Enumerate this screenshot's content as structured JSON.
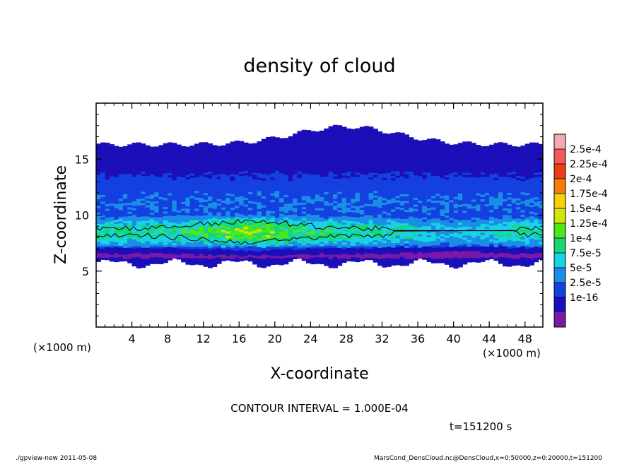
{
  "chart_data": {
    "type": "heatmap",
    "title": "density of cloud",
    "xlabel": "X-coordinate",
    "ylabel": "Z-coordinate",
    "x_unit_left": "(×1000 m)",
    "x_unit_right": "(×1000 m)",
    "xlim": [
      0,
      50
    ],
    "ylim": [
      0,
      20
    ],
    "x_ticks": [
      4,
      8,
      12,
      16,
      20,
      24,
      28,
      32,
      36,
      40,
      44,
      48
    ],
    "y_ticks": [
      5,
      10,
      15
    ],
    "grid": false,
    "contour_interval_label": "CONTOUR INTERVAL = 1.000E-04",
    "contour_interval": 0.0001,
    "time_label": "t=151200 s",
    "colorbar": {
      "labels": [
        "2.5e-4",
        "2.25e-4",
        "2e-4",
        "1.75e-4",
        "1.5e-4",
        "1.25e-4",
        "1e-4",
        "7.5e-5",
        "5e-5",
        "2.5e-5",
        "1e-16"
      ],
      "colors": [
        "#f7a8b6",
        "#f25a5a",
        "#f03c14",
        "#f57d0c",
        "#f5d20c",
        "#d2e60a",
        "#4ee81a",
        "#17d67a",
        "#1ad2e6",
        "#1a8ee6",
        "#1440e0",
        "#1a0fb8",
        "#7a18a8"
      ]
    },
    "cloud_layer": {
      "bottom_km_range": [
        5.2,
        6.2
      ],
      "top_km_range": [
        16.0,
        17.9
      ],
      "core_km": [
        7.5,
        9.5
      ],
      "max_density_approx": 0.00013
    }
  },
  "footer": {
    "left": "./gpview-new   2011-05-08",
    "right": "MarsCond_DensCloud.nc@DensCloud,x=0:50000,z=0:20000,t=151200"
  }
}
